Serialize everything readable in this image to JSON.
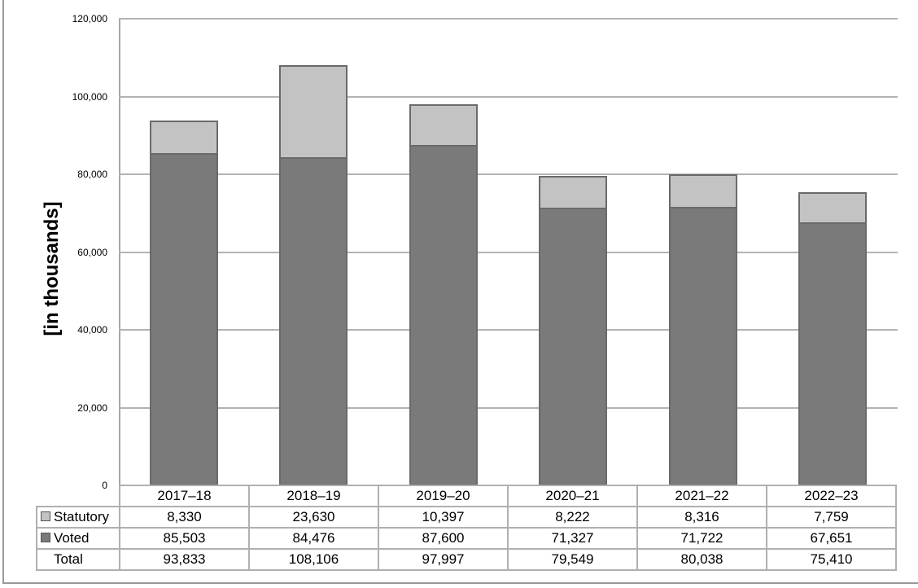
{
  "chart_data": {
    "type": "bar",
    "stacked": true,
    "title": "",
    "xlabel": "",
    "ylabel": "[in thousands]",
    "ylim": [
      0,
      120000
    ],
    "yticks": [
      "0",
      "20,000",
      "40,000",
      "60,000",
      "80,000",
      "100,000",
      "120,000"
    ],
    "grid": true,
    "legend_position": "data table (left of rows)",
    "categories": [
      "2017–18",
      "2018–19",
      "2019–20",
      "2020–21",
      "2021–22",
      "2022–23"
    ],
    "series": [
      {
        "name": "Voted",
        "color": "#7a7a7a",
        "values": [
          85503,
          84476,
          87600,
          71327,
          71722,
          67651
        ]
      },
      {
        "name": "Statutory",
        "color": "#c3c3c3",
        "values": [
          8330,
          23630,
          10397,
          8222,
          8316,
          7759
        ]
      }
    ],
    "totals": [
      93833,
      108106,
      97997,
      79549,
      80038,
      75410
    ]
  },
  "axis": {
    "ylabel": "[in thousands]",
    "ticks": [
      {
        "label": "120,000",
        "value": 120000
      },
      {
        "label": "100,000",
        "value": 100000
      },
      {
        "label": "80,000",
        "value": 80000
      },
      {
        "label": "60,000",
        "value": 60000
      },
      {
        "label": "40,000",
        "value": 40000
      },
      {
        "label": "20,000",
        "value": 20000
      },
      {
        "label": "0",
        "value": 0
      }
    ]
  },
  "table": {
    "categories": [
      "2017–18",
      "2018–19",
      "2019–20",
      "2020–21",
      "2021–22",
      "2022–23"
    ],
    "rows": [
      {
        "label": "Statutory",
        "key_color": "#c3c3c3",
        "cells": [
          "8,330",
          "23,630",
          "10,397",
          "8,222",
          "8,316",
          "7,759"
        ]
      },
      {
        "label": "Voted",
        "key_color": "#7a7a7a",
        "cells": [
          "85,503",
          "84,476",
          "87,600",
          "71,327",
          "71,722",
          "67,651"
        ]
      },
      {
        "label": "Total",
        "key_color": null,
        "cells": [
          "93,833",
          "108,106",
          "97,997",
          "79,549",
          "80,038",
          "75,410"
        ]
      }
    ]
  }
}
